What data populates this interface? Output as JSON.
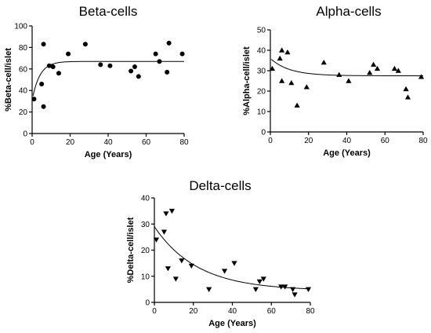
{
  "chart_data": [
    {
      "type": "scatter",
      "title": "Beta-cells",
      "xlabel": "Age (Years)",
      "ylabel": "%Beta-cell/islet",
      "xlim": [
        0,
        80
      ],
      "ylim": [
        0,
        100
      ],
      "xticks": [
        "0",
        "20",
        "40",
        "60",
        "80"
      ],
      "yticks": [
        "0",
        "20",
        "40",
        "60",
        "80",
        "100"
      ],
      "marker": "circle",
      "grid": false,
      "points": [
        {
          "x": 1,
          "y": 32
        },
        {
          "x": 5,
          "y": 46
        },
        {
          "x": 6,
          "y": 83
        },
        {
          "x": 6,
          "y": 25
        },
        {
          "x": 9,
          "y": 63
        },
        {
          "x": 11,
          "y": 62
        },
        {
          "x": 14,
          "y": 56
        },
        {
          "x": 19,
          "y": 74
        },
        {
          "x": 28,
          "y": 83
        },
        {
          "x": 36,
          "y": 64
        },
        {
          "x": 41,
          "y": 63
        },
        {
          "x": 52,
          "y": 58
        },
        {
          "x": 54,
          "y": 62
        },
        {
          "x": 56,
          "y": 53
        },
        {
          "x": 65,
          "y": 74
        },
        {
          "x": 67,
          "y": 67
        },
        {
          "x": 71,
          "y": 57
        },
        {
          "x": 72,
          "y": 84
        },
        {
          "x": 79,
          "y": 74
        }
      ],
      "fit": {
        "plateau": 67,
        "y0": 31,
        "k": 0.25,
        "x_start": 0.5,
        "x_end": 80
      }
    },
    {
      "type": "scatter",
      "title": "Alpha-cells",
      "xlabel": "Age (Years)",
      "ylabel": "%Alpha-cell/islet",
      "xlim": [
        0,
        80
      ],
      "ylim": [
        0,
        50
      ],
      "xticks": [
        "0",
        "20",
        "40",
        "60",
        "80"
      ],
      "yticks": [
        "0",
        "10",
        "20",
        "30",
        "40",
        "50"
      ],
      "marker": "triangle-up",
      "grid": false,
      "points": [
        {
          "x": 1,
          "y": 31
        },
        {
          "x": 5,
          "y": 36
        },
        {
          "x": 6,
          "y": 40
        },
        {
          "x": 6,
          "y": 25
        },
        {
          "x": 9,
          "y": 39
        },
        {
          "x": 11,
          "y": 24
        },
        {
          "x": 14,
          "y": 13
        },
        {
          "x": 19,
          "y": 22
        },
        {
          "x": 28,
          "y": 34
        },
        {
          "x": 36,
          "y": 28
        },
        {
          "x": 41,
          "y": 25
        },
        {
          "x": 52,
          "y": 29
        },
        {
          "x": 54,
          "y": 33
        },
        {
          "x": 56,
          "y": 31
        },
        {
          "x": 65,
          "y": 31
        },
        {
          "x": 67,
          "y": 30
        },
        {
          "x": 71,
          "y": 21
        },
        {
          "x": 72,
          "y": 17
        },
        {
          "x": 79,
          "y": 27
        }
      ],
      "fit": {
        "plateau": 27.5,
        "y0": 36,
        "k": 0.1,
        "x_start": 0.5,
        "x_end": 80
      }
    },
    {
      "type": "scatter",
      "title": "Delta-cells",
      "xlabel": "Age (Years)",
      "ylabel": "%Delta-cell/islet",
      "xlim": [
        0,
        80
      ],
      "ylim": [
        0,
        40
      ],
      "xticks": [
        "0",
        "20",
        "40",
        "60",
        "80"
      ],
      "yticks": [
        "0",
        "10",
        "20",
        "30",
        "40"
      ],
      "marker": "triangle-down",
      "grid": false,
      "points": [
        {
          "x": 1,
          "y": 24
        },
        {
          "x": 5,
          "y": 27
        },
        {
          "x": 6,
          "y": 34
        },
        {
          "x": 7,
          "y": 13
        },
        {
          "x": 9,
          "y": 35
        },
        {
          "x": 11,
          "y": 9
        },
        {
          "x": 14,
          "y": 16
        },
        {
          "x": 19,
          "y": 14
        },
        {
          "x": 28,
          "y": 5
        },
        {
          "x": 36,
          "y": 12
        },
        {
          "x": 41,
          "y": 15
        },
        {
          "x": 52,
          "y": 5
        },
        {
          "x": 54,
          "y": 8
        },
        {
          "x": 56,
          "y": 9
        },
        {
          "x": 65,
          "y": 6
        },
        {
          "x": 67,
          "y": 6
        },
        {
          "x": 71,
          "y": 5
        },
        {
          "x": 72,
          "y": 3
        },
        {
          "x": 79,
          "y": 5
        }
      ],
      "fit": {
        "plateau": 4.5,
        "y0": 29,
        "k": 0.045,
        "x_start": 0,
        "x_end": 80
      }
    }
  ]
}
